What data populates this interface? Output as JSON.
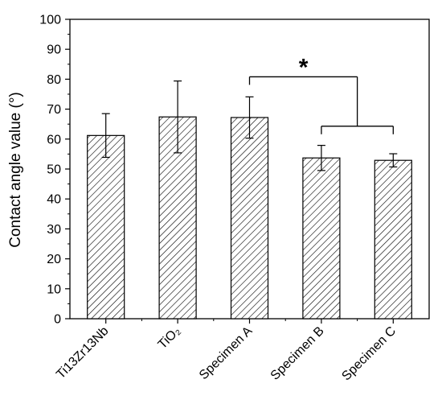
{
  "chart_data": {
    "type": "bar",
    "title": "",
    "xlabel": "",
    "ylabel": "Contact angle value (°)",
    "ylim": [
      0,
      100
    ],
    "yticks": [
      0,
      10,
      20,
      30,
      40,
      50,
      60,
      70,
      80,
      90,
      100
    ],
    "categories": [
      "Ti13Zr13Nb",
      "TiO₂",
      "Specimen A",
      "Specimen B",
      "Specimen C"
    ],
    "values": [
      61.2,
      67.4,
      67.2,
      53.7,
      52.9
    ],
    "errors": [
      7.3,
      12.0,
      6.9,
      4.2,
      2.2
    ],
    "bar_fill": "hatched",
    "grid": false,
    "significance": {
      "label": "*",
      "left_group": [
        "Specimen A"
      ],
      "right_group": [
        "Specimen B",
        "Specimen C"
      ]
    },
    "colors": {
      "bar_edge": "#000000",
      "hatch": "#000000",
      "background": "#ffffff"
    }
  }
}
